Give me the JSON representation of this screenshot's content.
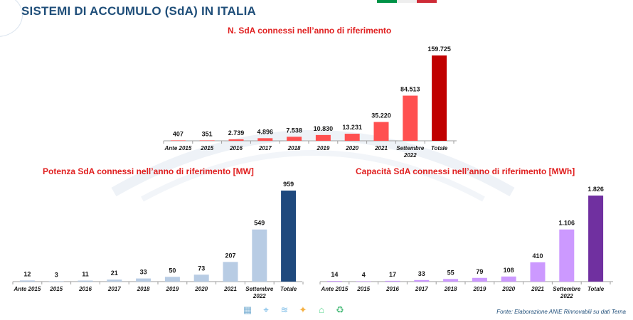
{
  "page": {
    "title": "SISTEMI DI ACCUMULO (SdA) IN ITALIA",
    "source": "Fonte: Elaborazione ANIE Rinnovabili su dati Terna",
    "flag_colors": [
      "#009246",
      "#ffffff",
      "#ce2b37"
    ]
  },
  "chart_data": [
    {
      "type": "bar",
      "title": "N. SdA connessi nell’anno di riferimento",
      "categories": [
        "Ante 2015",
        "2015",
        "2016",
        "2017",
        "2018",
        "2019",
        "2020",
        "2021",
        "Settembre 2022",
        "Totale"
      ],
      "values": [
        407,
        351,
        2739,
        4896,
        7538,
        10830,
        13231,
        35220,
        84513,
        159725
      ],
      "labels": [
        "407",
        "351",
        "2.739",
        "4.896",
        "7.538",
        "10.830",
        "13.231",
        "35.220",
        "84.513",
        "159.725"
      ],
      "colors": {
        "bar": "#ff5050",
        "total": "#c00000"
      },
      "ylim": [
        0,
        159725
      ]
    },
    {
      "type": "bar",
      "title": "Potenza SdA connessi nell’anno di riferimento [MW]",
      "categories": [
        "Ante 2015",
        "2015",
        "2016",
        "2017",
        "2018",
        "2019",
        "2020",
        "2021",
        "Settembre 2022",
        "Totale"
      ],
      "values": [
        12,
        3,
        11,
        21,
        33,
        50,
        73,
        207,
        549,
        959
      ],
      "labels": [
        "12",
        "3",
        "11",
        "21",
        "33",
        "50",
        "73",
        "207",
        "549",
        "959"
      ],
      "colors": {
        "bar": "#b8cce4",
        "total": "#1f497d"
      },
      "ylim": [
        0,
        959
      ]
    },
    {
      "type": "bar",
      "title": "Capacità SdA connessi nell’anno di riferimento [MWh]",
      "categories": [
        "Ante 2015",
        "2015",
        "2016",
        "2017",
        "2018",
        "2019",
        "2020",
        "2021",
        "Settembre 2022",
        "Totale"
      ],
      "values": [
        14,
        4,
        17,
        33,
        55,
        79,
        108,
        410,
        1106,
        1826
      ],
      "labels": [
        "14",
        "4",
        "17",
        "33",
        "55",
        "79",
        "108",
        "410",
        "1.106",
        "1.826"
      ],
      "colors": {
        "bar": "#cc99ff",
        "total": "#7030a0"
      },
      "ylim": [
        0,
        1826
      ]
    }
  ],
  "footer_icons": [
    "solar-panel-icon",
    "pylon-icon",
    "wind-icon",
    "bird-icon",
    "house-icon",
    "recycle-icon"
  ]
}
